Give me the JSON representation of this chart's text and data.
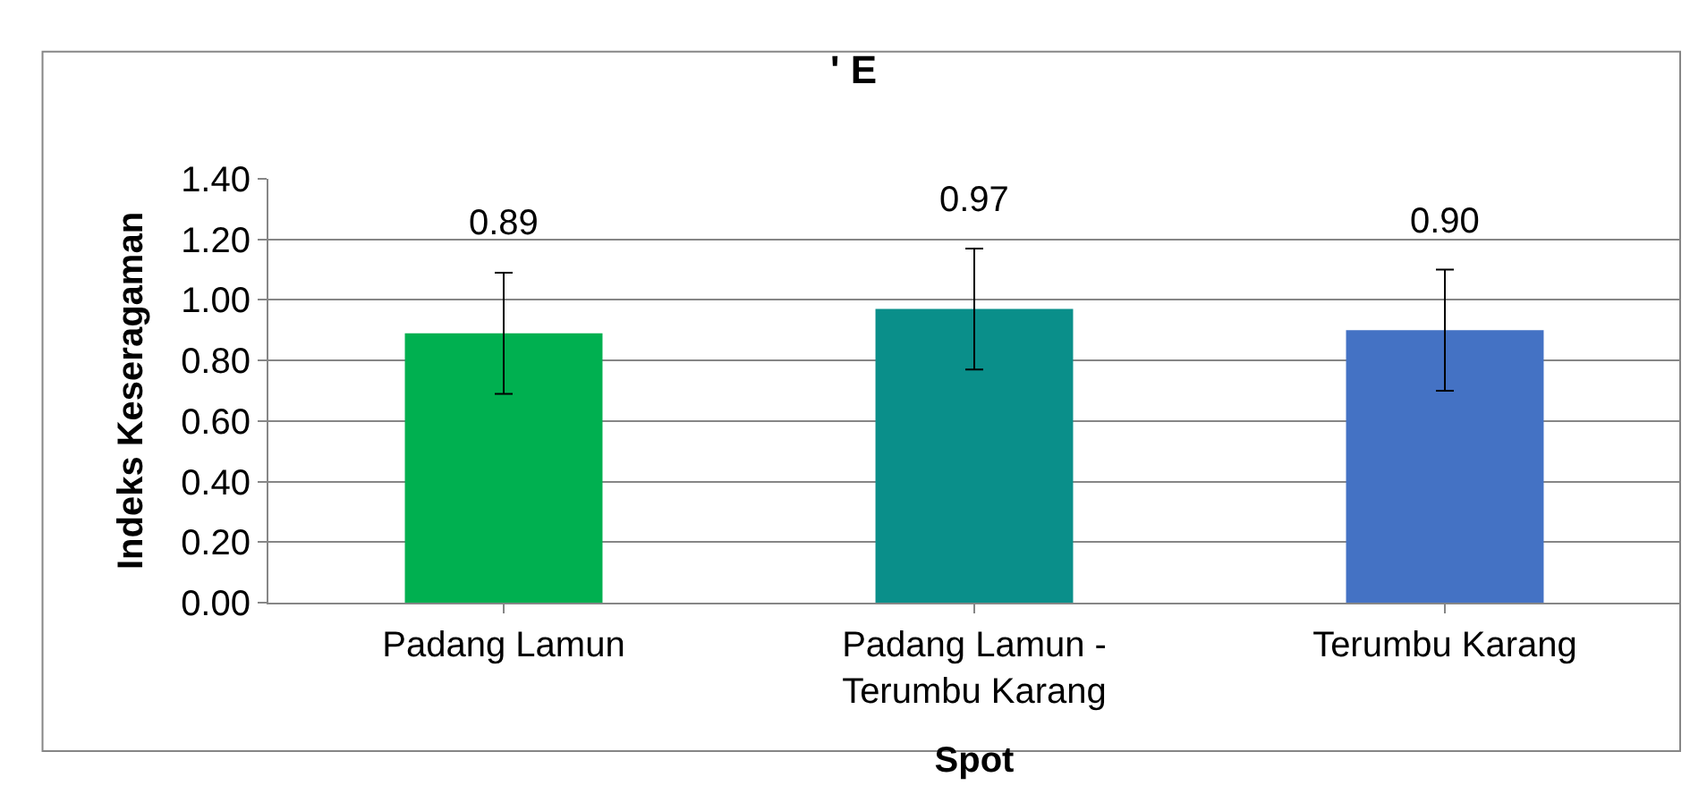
{
  "chart_data": {
    "type": "bar",
    "title": "' E",
    "xlabel": "Spot",
    "ylabel": "Indeks Keseragaman",
    "categories": [
      "Padang Lamun",
      "Padang Lamun -\nTerumbu Karang",
      "Terumbu Karang"
    ],
    "values": [
      0.89,
      0.97,
      0.9
    ],
    "value_labels": [
      "0.89",
      "0.97",
      "0.90"
    ],
    "errors": [
      0.2,
      0.2,
      0.2
    ],
    "colors": [
      "#00b050",
      "#0a8f8a",
      "#4472c4"
    ],
    "ylim": [
      0,
      1.4
    ],
    "yticks": [
      {
        "value": 0,
        "label": "0.00"
      },
      {
        "value": 0.2,
        "label": "0.20"
      },
      {
        "value": 0.4,
        "label": "0.40"
      },
      {
        "value": 0.6,
        "label": "0.60"
      },
      {
        "value": 0.8,
        "label": "0.80"
      },
      {
        "value": 1.0,
        "label": "1.00"
      },
      {
        "value": 1.2,
        "label": "1.20"
      },
      {
        "value": 1.4,
        "label": "1.40"
      }
    ],
    "grid": "y",
    "legend": false
  }
}
